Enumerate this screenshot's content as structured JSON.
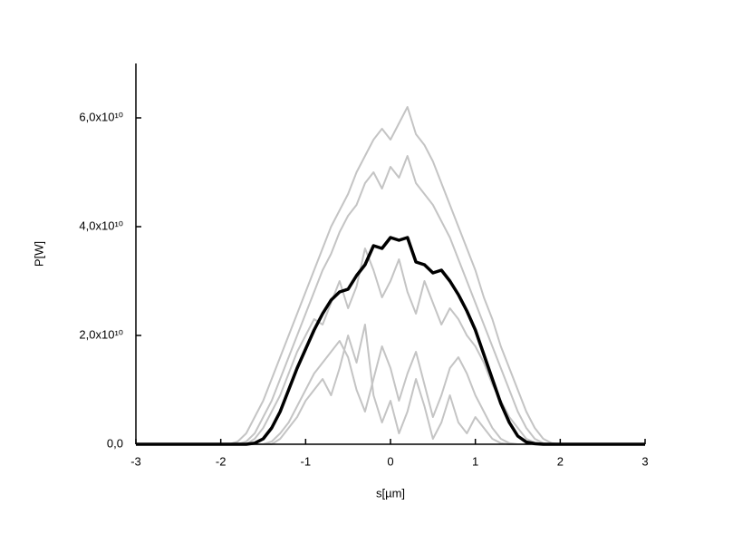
{
  "chart_data": {
    "type": "line",
    "x_label": "s[µm]",
    "y_label": "P[W]",
    "x": [
      -3,
      -2.0,
      -1.9,
      -1.8,
      -1.7,
      -1.6,
      -1.5,
      -1.4,
      -1.3,
      -1.2,
      -1.1,
      -1.0,
      -0.9,
      -0.8,
      -0.7,
      -0.6,
      -0.5,
      -0.4,
      -0.3,
      -0.2,
      -0.1,
      0,
      0.1,
      0.2,
      0.3,
      0.4,
      0.5,
      0.6,
      0.7,
      0.8,
      0.9,
      1.0,
      1.1,
      1.2,
      1.3,
      1.4,
      1.5,
      1.6,
      1.7,
      1.8,
      1.9,
      2.0,
      3
    ],
    "series": [
      {
        "color": "#c4c4c4",
        "values": [
          0,
          0,
          0,
          500000000.0,
          2000000000.0,
          5000000000.0,
          8000000000.0,
          12000000000.0,
          16000000000.0,
          20000000000.0,
          24000000000.0,
          28000000000.0,
          32000000000.0,
          36000000000.0,
          40000000000.0,
          43000000000.0,
          46000000000.0,
          50000000000.0,
          53000000000.0,
          56000000000.0,
          58000000000.0,
          56000000000.0,
          59000000000.0,
          62000000000.0,
          57000000000.0,
          55000000000.0,
          52000000000.0,
          48000000000.0,
          44000000000.0,
          40000000000.0,
          36000000000.0,
          32000000000.0,
          27000000000.0,
          23000000000.0,
          18000000000.0,
          14000000000.0,
          10000000000.0,
          6000000000.0,
          3000000000.0,
          1000000000.0,
          200000000.0,
          0,
          0
        ]
      },
      {
        "color": "#c4c4c4",
        "values": [
          0,
          0,
          0,
          0,
          500000000.0,
          2000000000.0,
          5000000000.0,
          8000000000.0,
          12000000000.0,
          16000000000.0,
          20000000000.0,
          24000000000.0,
          28000000000.0,
          32000000000.0,
          35000000000.0,
          39000000000.0,
          42000000000.0,
          44000000000.0,
          48000000000.0,
          50000000000.0,
          47000000000.0,
          51000000000.0,
          49000000000.0,
          53000000000.0,
          48000000000.0,
          46000000000.0,
          44000000000.0,
          41000000000.0,
          38000000000.0,
          34000000000.0,
          30000000000.0,
          26000000000.0,
          22000000000.0,
          18000000000.0,
          14000000000.0,
          10000000000.0,
          6000000000.0,
          3000000000.0,
          1000000000.0,
          200000000.0,
          0,
          0,
          0
        ]
      },
      {
        "color": "#c4c4c4",
        "values": [
          0,
          0,
          0,
          0,
          0,
          0,
          0,
          500000000.0,
          2000000000.0,
          4000000000.0,
          7000000000.0,
          10000000000.0,
          13000000000.0,
          15000000000.0,
          17000000000.0,
          19000000000.0,
          16000000000.0,
          10000000000.0,
          6000000000.0,
          12000000000.0,
          18000000000.0,
          14000000000.0,
          8000000000.0,
          13000000000.0,
          17000000000.0,
          11000000000.0,
          5000000000.0,
          9000000000.0,
          14000000000.0,
          16000000000.0,
          13000000000.0,
          9000000000.0,
          6000000000.0,
          3000000000.0,
          1000000000.0,
          200000000.0,
          0,
          0,
          0,
          0,
          0,
          0,
          0
        ]
      },
      {
        "color": "#c4c4c4",
        "values": [
          0,
          0,
          0,
          0,
          0,
          1000000000.0,
          3000000000.0,
          6000000000.0,
          9000000000.0,
          13000000000.0,
          17000000000.0,
          20000000000.0,
          23000000000.0,
          22000000000.0,
          26000000000.0,
          30000000000.0,
          25000000000.0,
          29000000000.0,
          36000000000.0,
          32000000000.0,
          27000000000.0,
          30000000000.0,
          34000000000.0,
          28000000000.0,
          24000000000.0,
          30000000000.0,
          26000000000.0,
          22000000000.0,
          25000000000.0,
          23000000000.0,
          20000000000.0,
          18000000000.0,
          15000000000.0,
          11000000000.0,
          8000000000.0,
          5000000000.0,
          3000000000.0,
          1000000000.0,
          300000000.0,
          0,
          0,
          0,
          0
        ]
      },
      {
        "color": "#c4c4c4",
        "values": [
          0,
          0,
          0,
          0,
          0,
          0,
          0,
          0,
          1000000000.0,
          3000000000.0,
          5000000000.0,
          8000000000.0,
          10000000000.0,
          12000000000.0,
          9000000000.0,
          14000000000.0,
          20000000000.0,
          15000000000.0,
          22000000000.0,
          9000000000.0,
          4000000000.0,
          8000000000.0,
          2000000000.0,
          6000000000.0,
          12000000000.0,
          7000000000.0,
          1000000000.0,
          4000000000.0,
          9000000000.0,
          4000000000.0,
          2000000000.0,
          5000000000.0,
          3000000000.0,
          1000000000.0,
          200000000.0,
          0,
          0,
          0,
          0,
          0,
          0,
          0,
          0
        ]
      },
      {
        "color": "#000000",
        "values": [
          0,
          0,
          0,
          0,
          0,
          200000000.0,
          1000000000.0,
          3000000000.0,
          6000000000.0,
          10000000000.0,
          14000000000.0,
          17500000000.0,
          21000000000.0,
          24000000000.0,
          26500000000.0,
          28000000000.0,
          28500000000.0,
          31000000000.0,
          33000000000.0,
          36500000000.0,
          36000000000.0,
          38000000000.0,
          37500000000.0,
          38000000000.0,
          33500000000.0,
          33000000000.0,
          31500000000.0,
          32000000000.0,
          30000000000.0,
          27500000000.0,
          24500000000.0,
          21000000000.0,
          16500000000.0,
          12000000000.0,
          7500000000.0,
          4000000000.0,
          1500000000.0,
          400000000.0,
          100000000.0,
          0,
          0,
          0,
          0
        ]
      }
    ],
    "xlim": [
      -3,
      3
    ],
    "xticks": [
      -3,
      -2,
      -1,
      0,
      1,
      2,
      3
    ],
    "ylim": [
      0,
      70000000000.0
    ],
    "yticks": [
      {
        "value": 0,
        "label": "0,0"
      },
      {
        "value": 20000000000.0,
        "label": "2,0x10¹⁰"
      },
      {
        "value": 40000000000.0,
        "label": "4,0x10¹⁰"
      },
      {
        "value": 60000000000.0,
        "label": "6,0x10¹⁰"
      }
    ],
    "grid": false
  }
}
